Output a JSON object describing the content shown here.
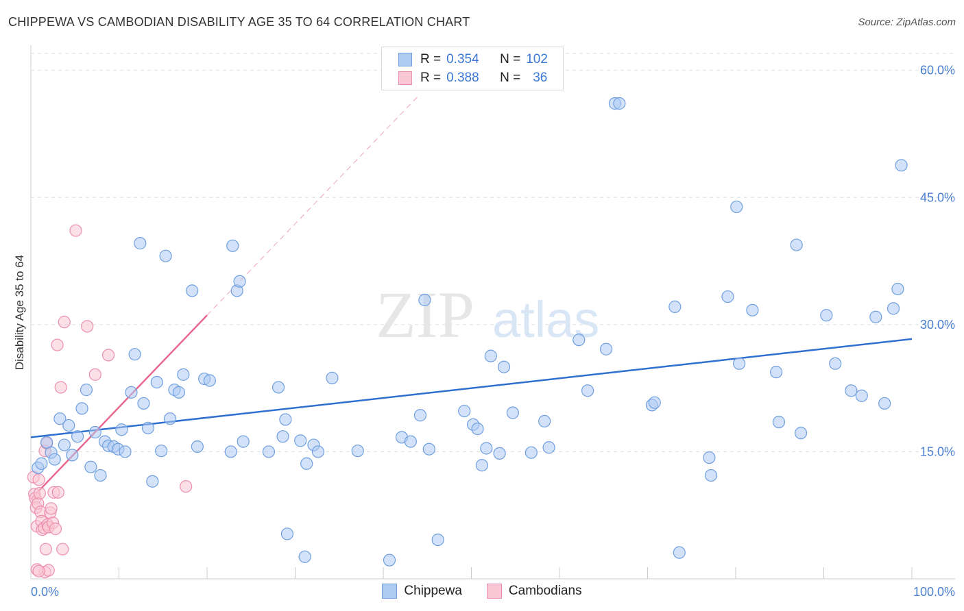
{
  "header": {
    "title": "CHIPPEWA VS CAMBODIAN DISABILITY AGE 35 TO 64 CORRELATION CHART",
    "source": "Source: ZipAtlas.com"
  },
  "watermark": {
    "zip": "ZIP",
    "atlas": "atlas"
  },
  "legend": {
    "rows": [
      {
        "r_label": "R =",
        "r_value": "0.354",
        "n_label": "N =",
        "n_value": "102",
        "color": "#aecbf2",
        "border": "#6f9fe0"
      },
      {
        "r_label": "R =",
        "r_value": "0.388",
        "n_label": "N =",
        "n_value": "36",
        "color": "#f9c6d6",
        "border": "#ec8fae"
      }
    ]
  },
  "bottom_legend": {
    "items": [
      {
        "label": "Chippewa",
        "color": "#aecbf2",
        "border": "#6f9fe0"
      },
      {
        "label": "Cambodians",
        "color": "#f9c6d6",
        "border": "#ec8fae"
      }
    ]
  },
  "colors": {
    "blue_fill": "#aecbf2",
    "blue_stroke": "#6f9fe0",
    "blue_line": "#2f6fd0",
    "pink_fill": "#f9c6d6",
    "pink_stroke": "#ec8fae",
    "pink_line": "#e8688f",
    "grid": "#dddddd",
    "tick_label": "#4a7fd0"
  },
  "chart_data": {
    "type": "scatter",
    "title": "CHIPPEWA VS CAMBODIAN DISABILITY AGE 35 TO 64 CORRELATION CHART",
    "xlabel": "",
    "ylabel": "Disability Age 35 to 64",
    "xlim": [
      0,
      100
    ],
    "ylim": [
      0,
      62
    ],
    "x_tick_labels": [
      "0.0%",
      "100.0%"
    ],
    "y_ticks": [
      15,
      30,
      45,
      60
    ],
    "y_tick_labels": [
      "15.0%",
      "30.0%",
      "45.0%",
      "60.0%"
    ],
    "grid": true,
    "legend_position": "top-center",
    "series": [
      {
        "name": "Chippewa",
        "R": 0.354,
        "N": 102,
        "trend": {
          "x0": 0,
          "y0": 16.7,
          "x1": 100,
          "y1": 28.3
        },
        "points": [
          [
            0.8,
            13.1
          ],
          [
            1.2,
            13.6
          ],
          [
            1.8,
            16.1
          ],
          [
            2.3,
            14.9
          ],
          [
            2.7,
            14.1
          ],
          [
            3.3,
            18.9
          ],
          [
            3.8,
            15.8
          ],
          [
            4.3,
            18.1
          ],
          [
            4.7,
            14.6
          ],
          [
            5.3,
            16.8
          ],
          [
            5.8,
            20.1
          ],
          [
            6.3,
            22.3
          ],
          [
            6.8,
            13.2
          ],
          [
            7.3,
            17.3
          ],
          [
            7.9,
            12.2
          ],
          [
            8.4,
            16.2
          ],
          [
            8.8,
            15.7
          ],
          [
            9.4,
            15.6
          ],
          [
            9.9,
            15.3
          ],
          [
            10.3,
            17.6
          ],
          [
            10.7,
            15.0
          ],
          [
            11.4,
            22.0
          ],
          [
            11.8,
            26.5
          ],
          [
            12.4,
            39.6
          ],
          [
            12.8,
            20.7
          ],
          [
            13.3,
            17.8
          ],
          [
            13.8,
            11.5
          ],
          [
            14.3,
            23.2
          ],
          [
            14.8,
            15.1
          ],
          [
            15.3,
            38.1
          ],
          [
            15.8,
            18.9
          ],
          [
            16.3,
            22.3
          ],
          [
            16.8,
            22.0
          ],
          [
            17.3,
            24.1
          ],
          [
            18.3,
            34.0
          ],
          [
            18.9,
            15.6
          ],
          [
            19.7,
            23.6
          ],
          [
            20.3,
            23.4
          ],
          [
            22.7,
            15.0
          ],
          [
            22.9,
            39.3
          ],
          [
            23.4,
            34.0
          ],
          [
            23.7,
            35.1
          ],
          [
            24.1,
            16.2
          ],
          [
            27.0,
            15.0
          ],
          [
            28.1,
            22.6
          ],
          [
            28.6,
            16.8
          ],
          [
            28.9,
            18.8
          ],
          [
            29.1,
            5.3
          ],
          [
            30.6,
            16.3
          ],
          [
            31.1,
            2.6
          ],
          [
            31.3,
            13.6
          ],
          [
            32.1,
            15.8
          ],
          [
            32.6,
            15.0
          ],
          [
            34.2,
            23.7
          ],
          [
            37.1,
            15.1
          ],
          [
            40.7,
            2.2
          ],
          [
            42.1,
            16.7
          ],
          [
            43.1,
            16.2
          ],
          [
            44.2,
            19.3
          ],
          [
            44.7,
            32.9
          ],
          [
            45.2,
            15.3
          ],
          [
            46.2,
            4.6
          ],
          [
            49.2,
            19.8
          ],
          [
            50.2,
            18.2
          ],
          [
            50.7,
            17.7
          ],
          [
            51.2,
            13.4
          ],
          [
            51.7,
            15.4
          ],
          [
            52.2,
            26.3
          ],
          [
            53.2,
            14.8
          ],
          [
            53.7,
            25.0
          ],
          [
            54.7,
            19.6
          ],
          [
            56.8,
            14.9
          ],
          [
            58.3,
            18.6
          ],
          [
            58.8,
            15.5
          ],
          [
            62.2,
            28.2
          ],
          [
            63.2,
            22.2
          ],
          [
            65.3,
            27.1
          ],
          [
            66.3,
            56.1
          ],
          [
            66.8,
            56.1
          ],
          [
            70.5,
            20.5
          ],
          [
            70.8,
            20.8
          ],
          [
            73.1,
            32.1
          ],
          [
            73.6,
            3.1
          ],
          [
            77.0,
            14.3
          ],
          [
            77.2,
            12.2
          ],
          [
            79.1,
            33.3
          ],
          [
            80.1,
            43.9
          ],
          [
            80.4,
            25.4
          ],
          [
            81.9,
            31.7
          ],
          [
            84.6,
            24.4
          ],
          [
            84.9,
            18.5
          ],
          [
            86.9,
            39.4
          ],
          [
            87.4,
            17.2
          ],
          [
            90.3,
            31.1
          ],
          [
            91.3,
            25.4
          ],
          [
            93.1,
            22.2
          ],
          [
            94.3,
            21.6
          ],
          [
            95.9,
            30.9
          ],
          [
            96.9,
            20.7
          ],
          [
            97.9,
            31.9
          ],
          [
            98.4,
            34.2
          ],
          [
            98.8,
            48.8
          ]
        ]
      },
      {
        "name": "Cambodians",
        "R": 0.388,
        "N": 36,
        "trend": {
          "x0": 0,
          "y0": 9.4,
          "x1": 20,
          "y1": 31.1,
          "dashed_to": {
            "x": 44,
            "y": 57.0
          }
        },
        "points": [
          [
            0.3,
            12.0
          ],
          [
            0.4,
            10.0
          ],
          [
            0.5,
            9.5
          ],
          [
            0.6,
            8.4
          ],
          [
            0.7,
            6.2
          ],
          [
            0.8,
            8.9
          ],
          [
            0.9,
            11.7
          ],
          [
            1.0,
            10.1
          ],
          [
            1.1,
            7.9
          ],
          [
            1.2,
            6.8
          ],
          [
            1.3,
            5.8
          ],
          [
            1.5,
            6.0
          ],
          [
            1.6,
            15.1
          ],
          [
            1.7,
            3.5
          ],
          [
            1.8,
            16.0
          ],
          [
            1.9,
            6.4
          ],
          [
            2.0,
            6.1
          ],
          [
            2.2,
            7.8
          ],
          [
            2.3,
            8.3
          ],
          [
            2.5,
            6.6
          ],
          [
            2.6,
            10.2
          ],
          [
            2.8,
            5.9
          ],
          [
            3.0,
            27.6
          ],
          [
            3.1,
            10.2
          ],
          [
            3.4,
            22.6
          ],
          [
            3.6,
            3.5
          ],
          [
            3.8,
            30.3
          ],
          [
            5.1,
            41.1
          ],
          [
            6.4,
            29.8
          ],
          [
            7.3,
            24.1
          ],
          [
            8.8,
            26.4
          ],
          [
            17.6,
            10.9
          ],
          [
            1.6,
            0.8
          ],
          [
            2.0,
            1.0
          ],
          [
            0.7,
            1.1
          ],
          [
            0.9,
            0.9
          ]
        ]
      }
    ]
  }
}
